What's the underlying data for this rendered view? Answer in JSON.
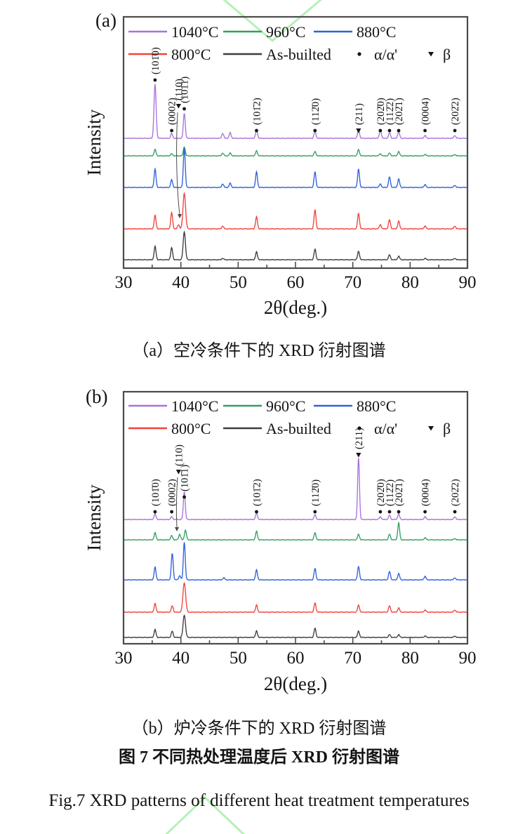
{
  "figure": {
    "caption_a": "（a）空冷条件下的 XRD 衍射图谱",
    "caption_b": "（b）炉冷条件下的 XRD 衍射图谱",
    "caption_cn": "图 7  不同热处理温度后 XRD 衍射图谱",
    "caption_en": "Fig.7 XRD patterns of different heat treatment temperatures",
    "watermark_color": "#b5f1b5"
  },
  "chart_data": [
    {
      "type": "line",
      "panel": "(a)",
      "xlabel": "2θ(deg.)",
      "ylabel": "Intensity",
      "xlim": [
        30,
        90
      ],
      "x_major_ticks": [
        30,
        40,
        50,
        60,
        70,
        80,
        90
      ],
      "x_minor_tick_step": 5,
      "grid": false,
      "legend_rows": [
        [
          {
            "type": "line",
            "color": "#a873db",
            "label": "1040°C"
          },
          {
            "type": "line",
            "color": "#33a05f",
            "label": "960°C"
          },
          {
            "type": "line",
            "color": "#2f62d9",
            "label": "880°C"
          }
        ],
        [
          {
            "type": "line",
            "color": "#f2423a",
            "label": "800°C"
          },
          {
            "type": "line",
            "color": "#3d3d3d",
            "label": "As-builted"
          },
          {
            "type": "marker",
            "marker": "circle",
            "label": "α/α'"
          },
          {
            "type": "marker",
            "marker": "triangle",
            "label": "β"
          }
        ]
      ],
      "series": [
        {
          "name": "1040°C",
          "color": "#a873db",
          "peaks": [
            [
              35.5,
              77,
              1.5
            ],
            [
              38.4,
              7
            ],
            [
              40.6,
              36
            ],
            [
              47.3,
              7
            ],
            [
              48.6,
              8
            ],
            [
              53.2,
              12
            ],
            [
              63.4,
              10
            ],
            [
              71,
              13
            ],
            [
              74.8,
              12
            ],
            [
              76.4,
              8
            ],
            [
              78,
              10
            ],
            [
              82.6,
              4
            ],
            [
              87.8,
              4
            ]
          ]
        },
        {
          "name": "960°C",
          "color": "#33a05f",
          "peaks": [
            [
              35.5,
              9
            ],
            [
              38.4,
              3
            ],
            [
              40.6,
              13
            ],
            [
              47.3,
              4
            ],
            [
              48.6,
              4
            ],
            [
              53.2,
              7
            ],
            [
              63.4,
              6
            ],
            [
              71,
              9
            ],
            [
              74.8,
              3
            ],
            [
              76.4,
              4
            ],
            [
              78,
              6
            ],
            [
              82.6,
              2
            ],
            [
              87.8,
              2
            ]
          ]
        },
        {
          "name": "880°C",
          "color": "#2f62d9",
          "peaks": [
            [
              35.5,
              26
            ],
            [
              38.4,
              11
            ],
            [
              40.6,
              56
            ],
            [
              47.3,
              5
            ],
            [
              48.6,
              6
            ],
            [
              53.2,
              22
            ],
            [
              63.4,
              22
            ],
            [
              71,
              26
            ],
            [
              74.8,
              5
            ],
            [
              76.4,
              15
            ],
            [
              78,
              12
            ],
            [
              82.6,
              4
            ],
            [
              87.8,
              3
            ]
          ]
        },
        {
          "name": "800°C",
          "color": "#f2423a",
          "peaks": [
            [
              35.5,
              19
            ],
            [
              38.4,
              23
            ],
            [
              39.6,
              6
            ],
            [
              40.6,
              51,
              1.8
            ],
            [
              47.3,
              4
            ],
            [
              53.2,
              17
            ],
            [
              63.4,
              27
            ],
            [
              71,
              22
            ],
            [
              74.8,
              6
            ],
            [
              76.4,
              13
            ],
            [
              78,
              11
            ],
            [
              82.6,
              4
            ],
            [
              87.8,
              4
            ]
          ]
        },
        {
          "name": "As-builted",
          "color": "#3d3d3d",
          "peaks": [
            [
              35.5,
              19
            ],
            [
              38.4,
              17
            ],
            [
              40.6,
              40,
              1.6
            ],
            [
              47.3,
              2
            ],
            [
              53.2,
              11
            ],
            [
              63.4,
              15
            ],
            [
              71,
              12
            ],
            [
              76.4,
              7
            ],
            [
              78,
              5
            ],
            [
              82.6,
              2
            ],
            [
              87.8,
              2
            ]
          ]
        }
      ],
      "peak_labels": [
        {
          "label": "(101̄0)",
          "two_theta": 35.5,
          "marker": "circle"
        },
        {
          "label": "(0002)",
          "two_theta": 38.4,
          "marker": "circle"
        },
        {
          "label": "(110)",
          "two_theta": 39.6,
          "marker": "triangle"
        },
        {
          "label": "(101̄1)",
          "two_theta": 40.6,
          "marker": "circle"
        },
        {
          "label": "(101̄2)",
          "two_theta": 53.2,
          "marker": "circle"
        },
        {
          "label": "(112̄0)",
          "two_theta": 63.4,
          "marker": "circle"
        },
        {
          "label": "(211)",
          "two_theta": 71.0,
          "marker": "triangle"
        },
        {
          "label": "(202̄0)",
          "two_theta": 74.8,
          "marker": "circle"
        },
        {
          "label": "(112̄2)",
          "two_theta": 76.4,
          "marker": "circle"
        },
        {
          "label": "(202̄1)",
          "two_theta": 78.0,
          "marker": "circle"
        },
        {
          "label": "(0004)",
          "two_theta": 82.6,
          "marker": "circle"
        },
        {
          "label": "(202̄2)",
          "two_theta": 87.8,
          "marker": "circle"
        }
      ]
    },
    {
      "type": "line",
      "panel": "(b)",
      "xlabel": "2θ(deg.)",
      "ylabel": "Intensity",
      "xlim": [
        30,
        90
      ],
      "x_major_ticks": [
        30,
        40,
        50,
        60,
        70,
        80,
        90
      ],
      "x_minor_tick_step": 5,
      "grid": false,
      "legend_rows": [
        [
          {
            "type": "line",
            "color": "#a873db",
            "label": "1040°C"
          },
          {
            "type": "line",
            "color": "#33a05f",
            "label": "960°C"
          },
          {
            "type": "line",
            "color": "#2f62d9",
            "label": "880°C"
          }
        ],
        [
          {
            "type": "line",
            "color": "#f2423a",
            "label": "800°C"
          },
          {
            "type": "line",
            "color": "#3d3d3d",
            "label": "As-builted"
          },
          {
            "type": "marker",
            "marker": "circle",
            "label": "α/α'"
          },
          {
            "type": "marker",
            "marker": "triangle",
            "label": "β"
          }
        ]
      ],
      "series": [
        {
          "name": "1040°C",
          "color": "#a873db",
          "peaks": [
            [
              35.5,
              8
            ],
            [
              38.4,
              4
            ],
            [
              40.6,
              40
            ],
            [
              53.2,
              9
            ],
            [
              63.4,
              7
            ],
            [
              71,
              88,
              1.3
            ],
            [
              74.8,
              4
            ],
            [
              76.4,
              6
            ],
            [
              78,
              8
            ],
            [
              82.6,
              4
            ],
            [
              87.8,
              4
            ]
          ]
        },
        {
          "name": "960°C",
          "color": "#33a05f",
          "peaks": [
            [
              35.5,
              10
            ],
            [
              38.4,
              6
            ],
            [
              39.8,
              8
            ],
            [
              40.8,
              14
            ],
            [
              53.2,
              12
            ],
            [
              63.4,
              10
            ],
            [
              71,
              8
            ],
            [
              76.4,
              8
            ],
            [
              78,
              24
            ],
            [
              82.6,
              3
            ],
            [
              87.8,
              2
            ]
          ]
        },
        {
          "name": "880°C",
          "color": "#2f62d9",
          "peaks": [
            [
              35.5,
              18
            ],
            [
              38.5,
              38
            ],
            [
              39.8,
              6
            ],
            [
              40.6,
              54
            ],
            [
              47.5,
              3
            ],
            [
              53.2,
              14
            ],
            [
              63.4,
              16
            ],
            [
              71,
              19
            ],
            [
              76.4,
              12
            ],
            [
              78,
              9
            ],
            [
              82.6,
              5
            ],
            [
              87.8,
              3
            ]
          ]
        },
        {
          "name": "800°C",
          "color": "#f2423a",
          "peaks": [
            [
              35.5,
              12
            ],
            [
              38.5,
              9
            ],
            [
              40.6,
              42,
              1.9
            ],
            [
              53.2,
              10
            ],
            [
              63.4,
              13
            ],
            [
              71,
              10
            ],
            [
              76.4,
              9
            ],
            [
              78,
              6
            ],
            [
              82.6,
              3
            ],
            [
              87.8,
              3
            ]
          ]
        },
        {
          "name": "As-builted",
          "color": "#3d3d3d",
          "peaks": [
            [
              35.5,
              11
            ],
            [
              38.5,
              9
            ],
            [
              40.6,
              32,
              1.7
            ],
            [
              53.2,
              9
            ],
            [
              63.4,
              13
            ],
            [
              71,
              9
            ],
            [
              76.4,
              4
            ],
            [
              78,
              4
            ],
            [
              82.6,
              2
            ],
            [
              87.8,
              2
            ]
          ]
        }
      ],
      "peak_labels": [
        {
          "label": "(101̄0)",
          "two_theta": 35.5,
          "marker": "circle"
        },
        {
          "label": "(0002)",
          "two_theta": 38.4,
          "marker": "circle"
        },
        {
          "label": "(110)",
          "two_theta": 39.6,
          "marker": "triangle"
        },
        {
          "label": "(101̄1)",
          "two_theta": 40.6,
          "marker": "circle"
        },
        {
          "label": "(101̄2)",
          "two_theta": 53.2,
          "marker": "circle"
        },
        {
          "label": "(112̄0)",
          "two_theta": 63.4,
          "marker": "circle"
        },
        {
          "label": "(211)",
          "two_theta": 71.0,
          "marker": "triangle"
        },
        {
          "label": "(202̄0)",
          "two_theta": 74.8,
          "marker": "circle"
        },
        {
          "label": "(112̄2)",
          "two_theta": 76.4,
          "marker": "circle"
        },
        {
          "label": "(202̄1)",
          "two_theta": 78.0,
          "marker": "circle"
        },
        {
          "label": "(0004)",
          "two_theta": 82.6,
          "marker": "circle"
        },
        {
          "label": "(202̄2)",
          "two_theta": 87.8,
          "marker": "circle"
        }
      ]
    }
  ]
}
